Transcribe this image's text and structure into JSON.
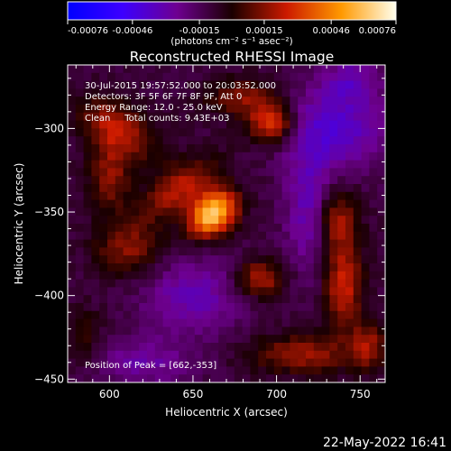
{
  "chart_data": {
    "type": "heatmap",
    "title": "Reconstructed RHESSI Image",
    "xlabel": "Heliocentric X (arcsec)",
    "ylabel": "Heliocentric Y (arcsec)",
    "xlim": [
      575,
      765
    ],
    "ylim": [
      -452,
      -262
    ],
    "xticks": [
      600,
      650,
      700,
      750
    ],
    "yticks": [
      -300,
      -350,
      -400,
      -450
    ],
    "colorbar": {
      "min": -0.00076,
      "max": 0.00076,
      "tick_labels": [
        "-0.00076",
        "-0.00046",
        "-0.00015",
        "0.00015",
        "0.00046",
        "0.00076"
      ],
      "unit_label": "(photons cm⁻² s⁻¹ asec⁻²)",
      "colors": [
        "#0000ff",
        "#3c00ff",
        "#6e0090",
        "#1a0000",
        "#cc1a00",
        "#ff9900",
        "#ffffee"
      ]
    },
    "annotations": [
      "30-Jul-2015 19:57:52.000 to 20:03:52.000",
      "Detectors: 3F 5F 6F 7F 8F 9F, Att 0",
      "Energy Range: 12.0 - 25.0 keV",
      "Clean     Total counts: 9.43E+03"
    ],
    "peak_label": "Position of Peak = [662,-353]",
    "peak": [
      662,
      -353
    ],
    "sources": [
      {
        "x": 662,
        "y": -351,
        "value": 0.00076,
        "sx": 11,
        "sy": 8,
        "angle": 40
      },
      {
        "x": 642,
        "y": -336,
        "value": 0.00032,
        "sx": 18,
        "sy": 9,
        "angle": 35
      },
      {
        "x": 697,
        "y": -297,
        "value": 0.00045,
        "sx": 9,
        "sy": 8,
        "angle": 0
      },
      {
        "x": 680,
        "y": -282,
        "value": 0.00025,
        "sx": 15,
        "sy": 8,
        "angle": 0
      },
      {
        "x": 605,
        "y": -300,
        "value": 0.00032,
        "sx": 18,
        "sy": 10,
        "angle": -30
      },
      {
        "x": 600,
        "y": -328,
        "value": 0.00026,
        "sx": 9,
        "sy": 15,
        "angle": 0
      },
      {
        "x": 612,
        "y": -372,
        "value": 0.00026,
        "sx": 14,
        "sy": 12,
        "angle": 0
      },
      {
        "x": 690,
        "y": -390,
        "value": 0.00034,
        "sx": 10,
        "sy": 8,
        "angle": 0
      },
      {
        "x": 735,
        "y": -355,
        "value": 0.00032,
        "sx": 9,
        "sy": 14,
        "angle": 0
      },
      {
        "x": 740,
        "y": -395,
        "value": 0.00036,
        "sx": 8,
        "sy": 18,
        "angle": 0
      },
      {
        "x": 715,
        "y": -435,
        "value": 0.00028,
        "sx": 22,
        "sy": 8,
        "angle": 0
      },
      {
        "x": 755,
        "y": -430,
        "value": 0.00026,
        "sx": 7,
        "sy": 10,
        "angle": 0
      },
      {
        "x": 585,
        "y": -425,
        "value": 0.00016,
        "sx": 7,
        "sy": 12,
        "angle": 0
      },
      {
        "x": 735,
        "y": -300,
        "value": -0.00028,
        "sx": 22,
        "sy": 18,
        "angle": 0
      },
      {
        "x": 720,
        "y": -350,
        "value": -0.00026,
        "sx": 10,
        "sy": 25,
        "angle": 0
      },
      {
        "x": 650,
        "y": -400,
        "value": -0.00022,
        "sx": 22,
        "sy": 16,
        "angle": 0
      },
      {
        "x": 620,
        "y": -440,
        "value": -0.00018,
        "sx": 22,
        "sy": 10,
        "angle": 0
      },
      {
        "x": 745,
        "y": -270,
        "value": -0.00018,
        "sx": 12,
        "sy": 10,
        "angle": 0
      }
    ]
  },
  "footer": {
    "date": "22-May-2022 16:41"
  }
}
